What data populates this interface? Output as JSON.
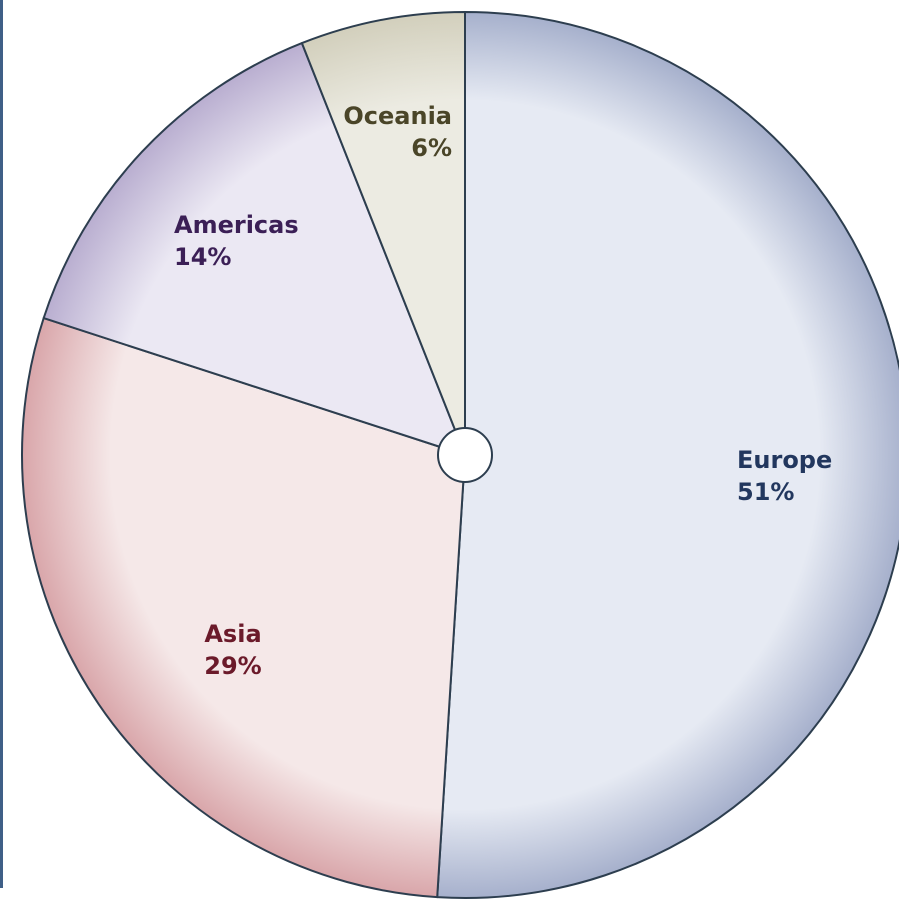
{
  "chart_data": {
    "type": "pie",
    "title": "",
    "start_angle_deg": 0,
    "direction": "clockwise",
    "slices": [
      {
        "label": "Europe",
        "value": 51,
        "percent_label": "51%",
        "fill_light": "#e6eaf3",
        "fill_dark": "#a6b0cc",
        "text_color": "#22375e"
      },
      {
        "label": "Asia",
        "value": 29,
        "percent_label": "29%",
        "fill_light": "#f5e8e8",
        "fill_dark": "#d9a6aa",
        "text_color": "#6b1a2a"
      },
      {
        "label": "Americas",
        "value": 14,
        "percent_label": "14%",
        "fill_light": "#ebe8f3",
        "fill_dark": "#b9aed0",
        "text_color": "#3b1f56"
      },
      {
        "label": "Oceania",
        "value": 6,
        "percent_label": "6%",
        "fill_light": "#ecebe2",
        "fill_dark": "#d2cfbc",
        "text_color": "#4a4528"
      }
    ],
    "center_hole": true,
    "outline_color": "#2d3e4f",
    "legend": "none"
  }
}
